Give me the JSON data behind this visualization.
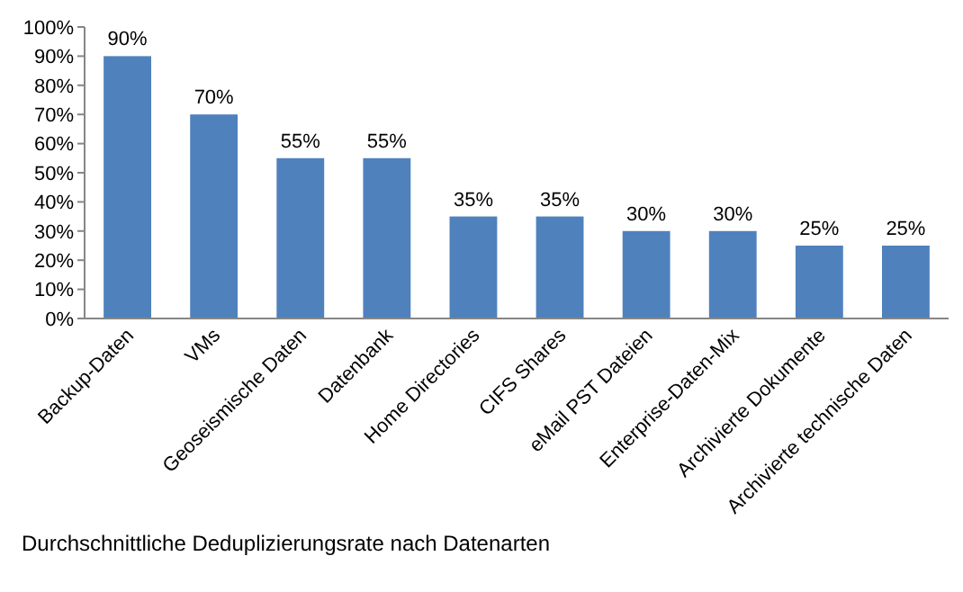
{
  "chart_data": {
    "type": "bar",
    "categories": [
      "Backup-Daten",
      "VMs",
      "Geoseismische Daten",
      "Datenbank",
      "Home Directories",
      "CIFS Shares",
      "eMail PST Dateien",
      "Enterprise-Daten-Mix",
      "Archivierte Dokumente",
      "Archivierte technische Daten"
    ],
    "values": [
      90,
      70,
      55,
      55,
      35,
      35,
      30,
      30,
      25,
      25
    ],
    "value_labels": [
      "90%",
      "70%",
      "55%",
      "55%",
      "35%",
      "35%",
      "30%",
      "30%",
      "25%",
      "25%"
    ],
    "color": "#4f81bd",
    "ylim": [
      0,
      100
    ],
    "yticks": [
      {
        "value": 0,
        "label": "0%"
      },
      {
        "value": 10,
        "label": "10%"
      },
      {
        "value": 20,
        "label": "20%"
      },
      {
        "value": 30,
        "label": "30%"
      },
      {
        "value": 40,
        "label": "40%"
      },
      {
        "value": 50,
        "label": "50%"
      },
      {
        "value": 60,
        "label": "60%"
      },
      {
        "value": 70,
        "label": "70%"
      },
      {
        "value": 80,
        "label": "80%"
      },
      {
        "value": 90,
        "label": "90%"
      },
      {
        "value": 100,
        "label": "100%"
      }
    ],
    "annotations": [
      "Durchschnittliche Deduplizierungsrate nach Datenarten"
    ]
  }
}
